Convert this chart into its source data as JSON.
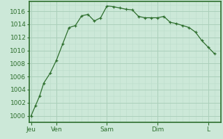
{
  "background_color": "#cce8d8",
  "plot_bg_color": "#cce8d8",
  "grid_major_color": "#aacfba",
  "grid_minor_color": "#bbdcca",
  "line_color": "#2d6e2d",
  "marker_color": "#2d6e2d",
  "axis_color": "#2d6e2d",
  "ylim": [
    999.5,
    1017.5
  ],
  "yticks": [
    1000,
    1002,
    1004,
    1006,
    1008,
    1010,
    1012,
    1014,
    1016
  ],
  "x_day_labels": [
    "Jeu",
    "Ven",
    "Sam",
    "Dim",
    "L"
  ],
  "x_day_positions": [
    0,
    12,
    36,
    60,
    84
  ],
  "xlim": [
    -1,
    90
  ],
  "data_x": [
    0,
    2,
    4,
    6,
    9,
    12,
    15,
    18,
    21,
    24,
    27,
    30,
    33,
    36,
    39,
    42,
    45,
    48,
    51,
    54,
    57,
    60,
    63,
    66,
    69,
    72,
    75,
    78,
    81,
    84,
    87
  ],
  "data_y": [
    1000.0,
    1001.5,
    1003.0,
    1005.0,
    1006.5,
    1008.5,
    1011.0,
    1013.5,
    1013.8,
    1015.3,
    1015.5,
    1014.5,
    1015.0,
    1016.8,
    1016.7,
    1016.5,
    1016.3,
    1016.2,
    1015.2,
    1015.0,
    1015.0,
    1015.0,
    1015.2,
    1014.3,
    1014.1,
    1013.8,
    1013.5,
    1012.8,
    1011.5,
    1010.5,
    1009.5
  ],
  "tick_fontsize": 6.5,
  "tick_color": "#2d6e2d"
}
